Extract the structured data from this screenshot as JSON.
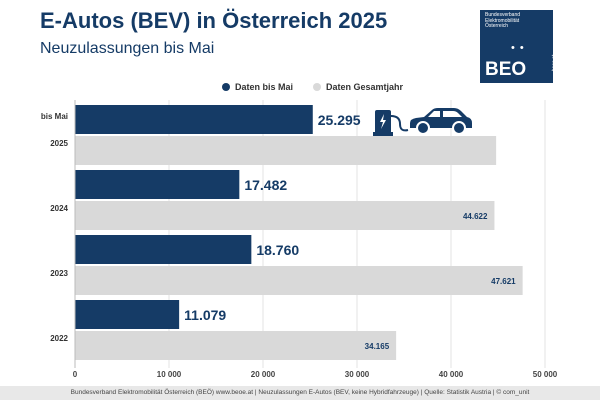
{
  "header": {
    "title": "E-Autos (BEV) in Österreich 2025",
    "subtitle": "Neuzulassungen bis Mai"
  },
  "logo": {
    "org_name": "Bundesverband Elektromobilität Österreich",
    "mark": "BEO",
    "url": "beoe.at"
  },
  "footer": {
    "text": "Bundesverband Elektromobilität Österreich (BEÖ) www.beoe.at | Neuzulassungen E-Autos (BEV, keine Hybridfahrzeuge) | Quelle: Statistik Austria | © com_unit"
  },
  "colors": {
    "primary": "#153b66",
    "secondary": "#d9d9d9",
    "text": "#333333"
  },
  "icons": [
    "ev-charger-icon",
    "car-icon"
  ],
  "chart_data": {
    "type": "bar",
    "orientation": "horizontal",
    "categories": [
      "2025",
      "2024",
      "2023",
      "2022"
    ],
    "category_prefix_first": "bis Mai",
    "series": [
      {
        "name": "Daten bis Mai",
        "values": [
          25295,
          17482,
          18760,
          11079
        ],
        "labels": [
          "25.295",
          "17.482",
          "18.760",
          "11.079"
        ]
      },
      {
        "name": "Daten Gesamtjahr",
        "values": [
          44800,
          44622,
          47621,
          34165
        ],
        "labels": [
          "",
          "44.622",
          "47.621",
          "34.165"
        ]
      }
    ],
    "xlim": [
      0,
      50000
    ],
    "xticks": [
      0,
      10000,
      20000,
      30000,
      40000,
      50000
    ],
    "xtick_labels": [
      "0",
      "10 000",
      "20 000",
      "30 000",
      "40 000",
      "50 000"
    ],
    "grid": true,
    "legend": "top-center"
  }
}
